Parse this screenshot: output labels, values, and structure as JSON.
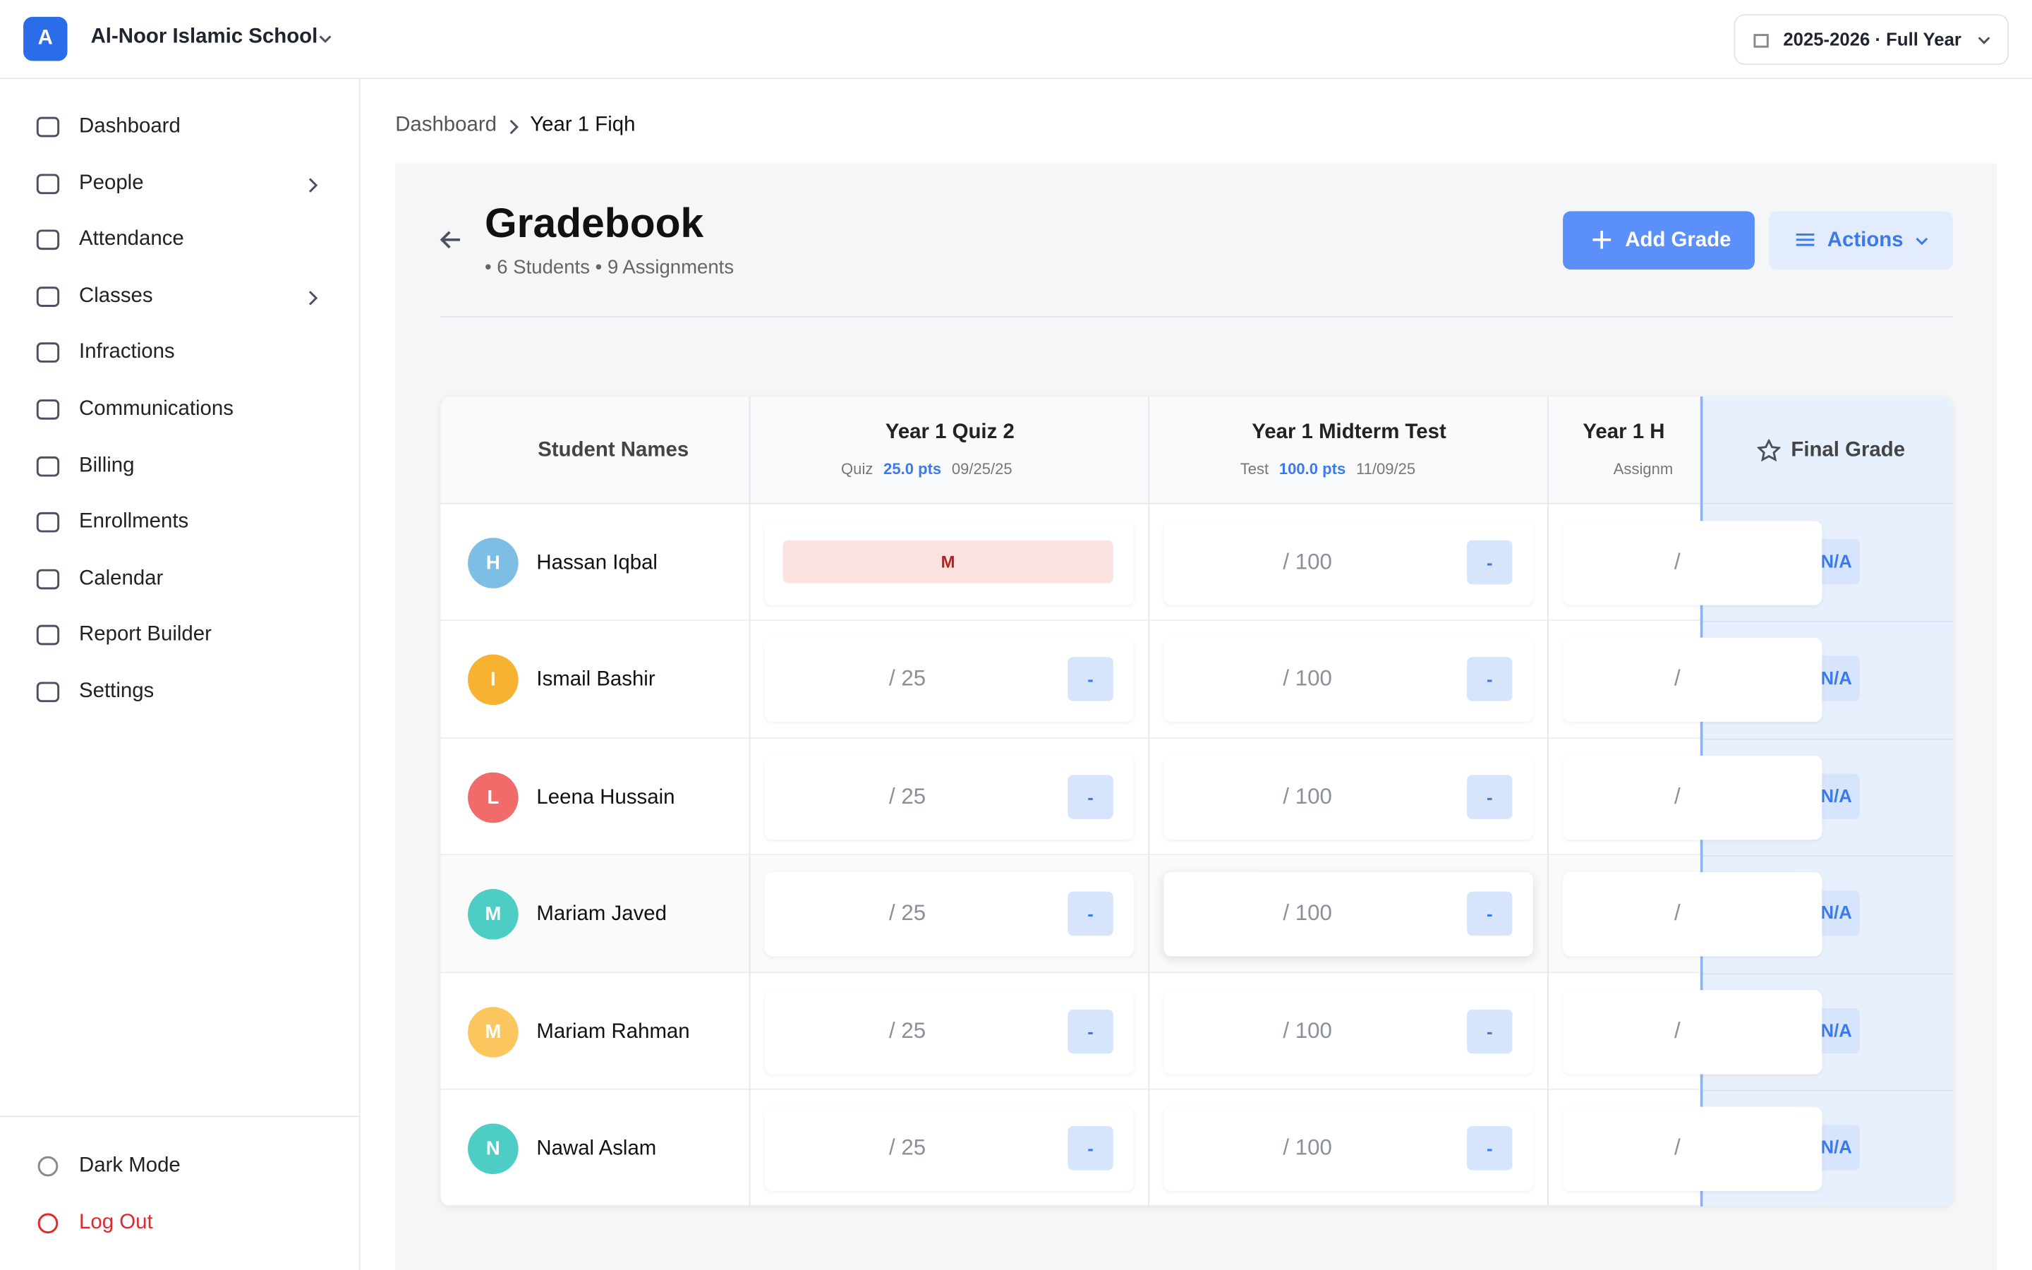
{
  "header": {
    "avatar_letter": "A",
    "school": "Al-Noor Islamic School",
    "term": "2025-2026 · Full Year"
  },
  "sidebar": {
    "nav": [
      "Dashboard",
      "People",
      "Attendance",
      "Classes",
      "Infractions",
      "Communications",
      "Billing",
      "Enrollments",
      "Calendar",
      "Report Builder",
      "Settings"
    ],
    "bottom": [
      "Dark Mode",
      "Log Out"
    ]
  },
  "breadcrumb": [
    "Dashboard",
    "Year 1 Fiqh"
  ],
  "page": {
    "title": "Gradebook",
    "students": "6 Students",
    "assignments": "9 Assignments",
    "add_button": "Add Grade",
    "actions_button": "Actions"
  },
  "table": {
    "student_header": "Student Names",
    "final_header": "Final Grade",
    "columns": [
      {
        "title": "Year 1 Quiz 2",
        "kind": "Quiz",
        "points": "25.0 pts",
        "date": "09/25/25"
      },
      {
        "title": "Year 1 Midterm Test",
        "kind": "Test",
        "points": "100.0 pts",
        "date": "11/09/25"
      },
      {
        "title": "Year 1 H",
        "kind": "Assignm"
      }
    ],
    "rows": [
      {
        "initial": "H",
        "name": "Hassan Iqbal",
        "color": "#7fbee4",
        "cells": [
          {
            "mark": "M"
          },
          {
            "score": "/ 100",
            "badge": "-"
          },
          {
            "score": "/"
          }
        ],
        "final": "N/A"
      },
      {
        "initial": "I",
        "name": "Ismail Bashir",
        "color": "#f6b230",
        "cells": [
          {
            "score": "/ 25",
            "badge": "-"
          },
          {
            "score": "/ 100",
            "badge": "-"
          },
          {
            "score": "/"
          }
        ],
        "final": "N/A"
      },
      {
        "initial": "L",
        "name": "Leena Hussain",
        "color": "#f26b6b",
        "cells": [
          {
            "score": "/ 25",
            "badge": "-"
          },
          {
            "score": "/ 100",
            "badge": "-"
          },
          {
            "score": "/"
          }
        ],
        "final": "N/A"
      },
      {
        "initial": "M",
        "name": "Mariam Javed",
        "color": "#4ecdc4",
        "cells": [
          {
            "score": "/ 25",
            "badge": "-"
          },
          {
            "score": "/ 100",
            "badge": "-"
          },
          {
            "score": "/"
          }
        ],
        "final": "N/A"
      },
      {
        "initial": "M",
        "name": "Mariam Rahman",
        "color": "#fcc65e",
        "cells": [
          {
            "score": "/ 25",
            "badge": "-"
          },
          {
            "score": "/ 100",
            "badge": "-"
          },
          {
            "score": "/"
          }
        ],
        "final": "N/A"
      },
      {
        "initial": "N",
        "name": "Nawal Aslam",
        "color": "#4ecdc4",
        "cells": [
          {
            "score": "/ 25",
            "badge": "-"
          },
          {
            "score": "/ 100",
            "badge": "-"
          },
          {
            "score": "/"
          }
        ],
        "final": "N/A"
      }
    ]
  }
}
